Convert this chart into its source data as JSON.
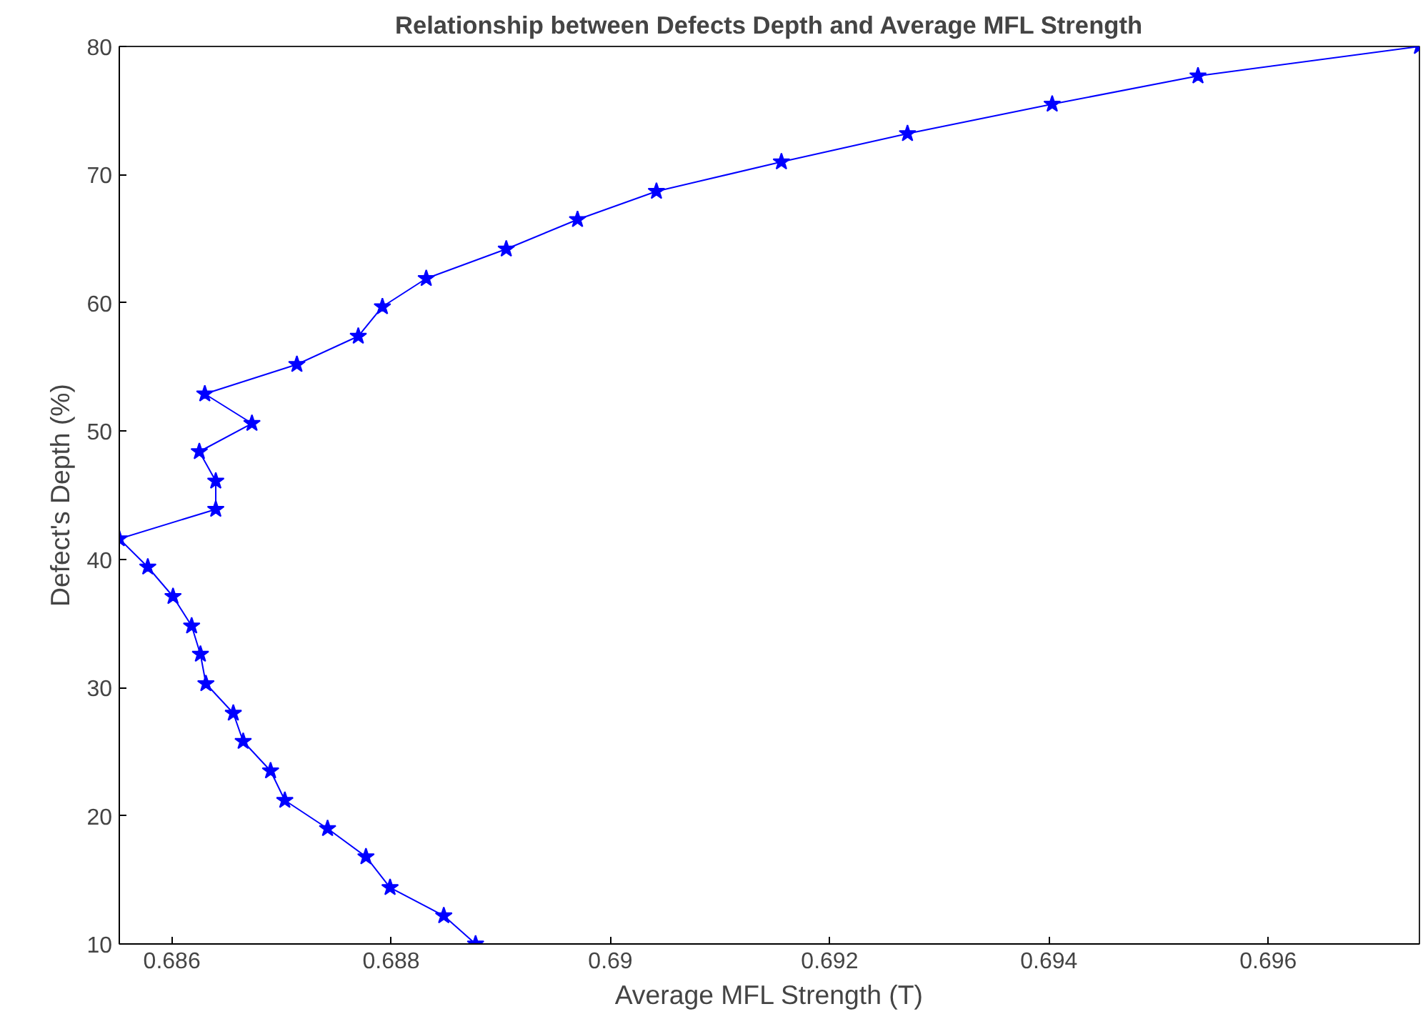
{
  "chart_data": {
    "type": "line",
    "title": "Relationship between Defects Depth and Average MFL Strength",
    "xlabel": "Average MFL Strength (T)",
    "ylabel": "Defect's Depth (%)",
    "xlim": [
      0.68552,
      0.69738
    ],
    "ylim": [
      10,
      80
    ],
    "xticks": [
      0.686,
      0.688,
      0.69,
      0.692,
      0.694,
      0.696
    ],
    "yticks": [
      10,
      20,
      30,
      40,
      50,
      60,
      70,
      80
    ],
    "grid": false,
    "marker": "star",
    "line_style": "solid",
    "series": [
      {
        "color": "#0000ff",
        "x": [
          0.68877,
          0.68848,
          0.68799,
          0.68777,
          0.68742,
          0.68703,
          0.6869,
          0.68665,
          0.68656,
          0.68631,
          0.68626,
          0.68618,
          0.68601,
          0.68578,
          0.68552,
          0.6864,
          0.6864,
          0.68625,
          0.68673,
          0.6863,
          0.68714,
          0.6877,
          0.68792,
          0.68832,
          0.68905,
          0.6897,
          0.69042,
          0.69156,
          0.69271,
          0.69403,
          0.69536,
          0.69738
        ],
        "values": [
          10,
          12.2,
          14.4,
          16.8,
          19.0,
          21.2,
          23.5,
          25.8,
          28.0,
          30.3,
          32.6,
          34.8,
          37.1,
          39.4,
          41.6,
          43.9,
          46.1,
          48.4,
          50.6,
          52.9,
          55.2,
          57.4,
          59.7,
          61.9,
          64.2,
          66.5,
          68.7,
          71.0,
          73.2,
          75.5,
          77.7,
          80.0
        ]
      }
    ]
  }
}
